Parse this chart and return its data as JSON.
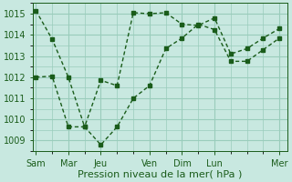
{
  "background_color": "#c8e8e0",
  "grid_color": "#99ccbb",
  "line_color": "#1a5c1a",
  "xlabel": "Pression niveau de la mer( hPa )",
  "ylim": [
    1008.5,
    1015.5
  ],
  "yticks": [
    1009,
    1010,
    1011,
    1012,
    1013,
    1014,
    1015
  ],
  "day_labels": [
    "Sam",
    "Mar",
    "Jeu",
    "Ven",
    "Dim",
    "Lun",
    "Mer"
  ],
  "day_positions": [
    0,
    2,
    4,
    7,
    9,
    11,
    15
  ],
  "xlim": [
    -0.2,
    15.5
  ],
  "line1_x": [
    0,
    1,
    2,
    3,
    4,
    5,
    6,
    7,
    8,
    9,
    10,
    11,
    12,
    13,
    14,
    15
  ],
  "line1_y": [
    1015.15,
    1013.8,
    1012.0,
    1009.65,
    1008.8,
    1009.65,
    1011.0,
    1011.6,
    1013.35,
    1013.85,
    1014.5,
    1014.25,
    1012.75,
    1012.75,
    1013.3,
    1013.85
  ],
  "line2_x": [
    0,
    1,
    2,
    3,
    4,
    5,
    6,
    7,
    8,
    9,
    10,
    11,
    12,
    13,
    14,
    15
  ],
  "line2_y": [
    1012.0,
    1012.05,
    1009.65,
    1009.65,
    1011.85,
    1011.6,
    1015.05,
    1015.0,
    1015.05,
    1014.5,
    1014.45,
    1014.8,
    1013.1,
    1013.35,
    1013.85,
    1014.3
  ],
  "fontsize_label": 8,
  "fontsize_tick": 7,
  "marker_size": 2.8,
  "linewidth": 1.0
}
